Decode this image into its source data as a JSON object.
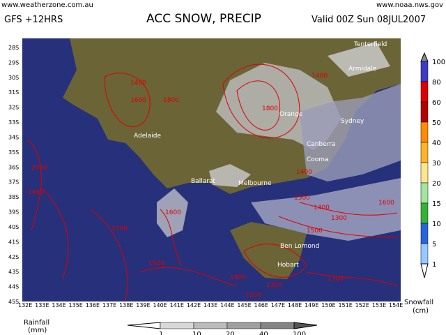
{
  "header": {
    "site": "www.weatherzone.com.au",
    "model": "GFS +12HRS",
    "title": "ACC SNOW, PRECIP",
    "valid": "Valid 00Z Sun 08JUL2007",
    "source": "www.noaa.nws.gov"
  },
  "lat_labels": [
    "28S",
    "29S",
    "30S",
    "31S",
    "32S",
    "33S",
    "34S",
    "35S",
    "36S",
    "37S",
    "38S",
    "39S",
    "40S",
    "41S",
    "42S",
    "43S",
    "44S",
    "45S"
  ],
  "lon_labels": [
    "132E",
    "133E",
    "134E",
    "135E",
    "136E",
    "137E",
    "138E",
    "139E",
    "140E",
    "141E",
    "142E",
    "143E",
    "144E",
    "145E",
    "146E",
    "147E",
    "148E",
    "149E",
    "150E",
    "151E",
    "152E",
    "153E",
    "154E"
  ],
  "cities": [
    "Tenterfield",
    "Armidale",
    "Orange",
    "Sydney",
    "Adelaide",
    "Canberra",
    "Cooma",
    "Ballarat",
    "Melbourne",
    "Ben Lomond",
    "Hobart"
  ],
  "contour_labels": [
    "2050",
    "1400",
    "1300",
    "1600",
    "1500",
    "1400",
    "1300",
    "1200",
    "1400",
    "1300",
    "1600",
    "1500",
    "1400",
    "1400",
    "1800",
    "1400",
    "1600",
    "1800",
    "1300",
    "1500"
  ],
  "snow_legend": {
    "labels": [
      "100",
      "80",
      "60",
      "50",
      "40",
      "30",
      "20",
      "15",
      "10",
      "5",
      "1"
    ],
    "title": "Snowfall",
    "unit": "(cm)"
  },
  "rain_legend": {
    "labels": [
      "1",
      "10",
      "20",
      "40",
      "100"
    ],
    "title": "Rainfall",
    "unit": "(mm)"
  }
}
